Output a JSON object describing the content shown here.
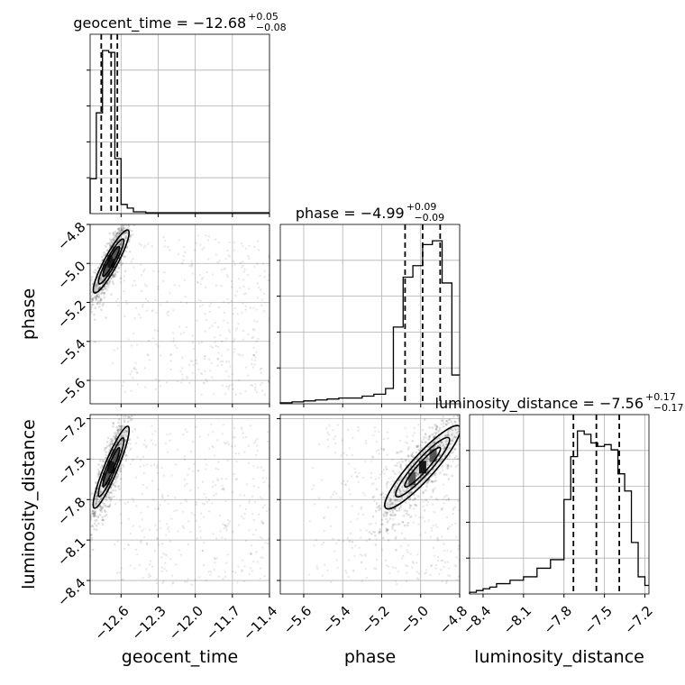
{
  "chart_data": {
    "type": "corner",
    "parameters": [
      {
        "name": "geocent_time",
        "range": [
          -12.85,
          -11.4
        ],
        "ticks": [
          "−12.6",
          "−12.3",
          "−12.0",
          "−11.7",
          "−11.4"
        ],
        "tick_values": [
          -12.6,
          -12.3,
          -12.0,
          -11.7,
          -11.4
        ]
      },
      {
        "name": "phase",
        "range": [
          -5.72,
          -4.8
        ],
        "ticks": [
          "−5.6",
          "−5.4",
          "−5.2",
          "−5.0",
          "−4.8"
        ],
        "tick_values": [
          -5.6,
          -5.4,
          -5.2,
          -5.0,
          -4.8
        ]
      },
      {
        "name": "luminosity_distance",
        "range": [
          -8.5,
          -7.17
        ],
        "ticks": [
          "−8.4",
          "−8.1",
          "−7.8",
          "−7.5",
          "−7.2"
        ],
        "tick_values": [
          -8.4,
          -8.1,
          -7.8,
          -7.5,
          -7.2
        ]
      }
    ],
    "titles": [
      {
        "main": "geocent_time = −12.68",
        "sup": "+0.05",
        "sub": "−0.08"
      },
      {
        "main": "phase = −4.99",
        "sup": "+0.09",
        "sub": "−0.09"
      },
      {
        "main": "luminosity_distance = −7.56",
        "sup": "+0.17",
        "sub": "−0.17"
      }
    ],
    "quantiles": [
      [
        -12.76,
        -12.68,
        -12.63
      ],
      [
        -5.08,
        -4.99,
        -4.9
      ],
      [
        -7.73,
        -7.56,
        -7.39
      ]
    ],
    "histograms": [
      {
        "edges": [
          -12.85,
          -12.8,
          -12.75,
          -12.7,
          -12.65,
          -12.6,
          -12.55,
          -12.5,
          -12.45,
          -12.4,
          -12.35,
          -12.3,
          -12.25,
          -12.2,
          -12.1,
          -12.0,
          -11.8,
          -11.6,
          -11.4
        ],
        "counts": [
          0.19,
          0.55,
          0.89,
          0.88,
          0.3,
          0.05,
          0.03,
          0.01,
          0.01,
          0.005,
          0.005,
          0.005,
          0.005,
          0.005,
          0.005,
          0.005,
          0.005,
          0.005
        ]
      },
      {
        "edges": [
          -5.72,
          -5.66,
          -5.6,
          -5.54,
          -5.48,
          -5.42,
          -5.36,
          -5.3,
          -5.24,
          -5.18,
          -5.14,
          -5.09,
          -5.04,
          -4.99,
          -4.94,
          -4.89,
          -4.84,
          -4.8
        ],
        "counts": [
          0.005,
          0.01,
          0.015,
          0.02,
          0.025,
          0.03,
          0.03,
          0.04,
          0.05,
          0.08,
          0.4,
          0.66,
          0.72,
          0.83,
          0.85,
          0.63,
          0.15
        ]
      },
      {
        "edges": [
          -8.5,
          -8.45,
          -8.4,
          -8.35,
          -8.3,
          -8.2,
          -8.1,
          -8.0,
          -7.9,
          -7.8,
          -7.75,
          -7.7,
          -7.65,
          -7.6,
          -7.55,
          -7.5,
          -7.45,
          -7.4,
          -7.35,
          -7.3,
          -7.25,
          -7.2,
          -7.17
        ],
        "counts": [
          0.01,
          0.02,
          0.03,
          0.04,
          0.06,
          0.08,
          0.1,
          0.15,
          0.2,
          0.55,
          0.8,
          0.95,
          0.93,
          0.88,
          0.86,
          0.87,
          0.84,
          0.7,
          0.6,
          0.3,
          0.1,
          0.05
        ]
      }
    ],
    "grid": true,
    "contour_levels": 3
  }
}
